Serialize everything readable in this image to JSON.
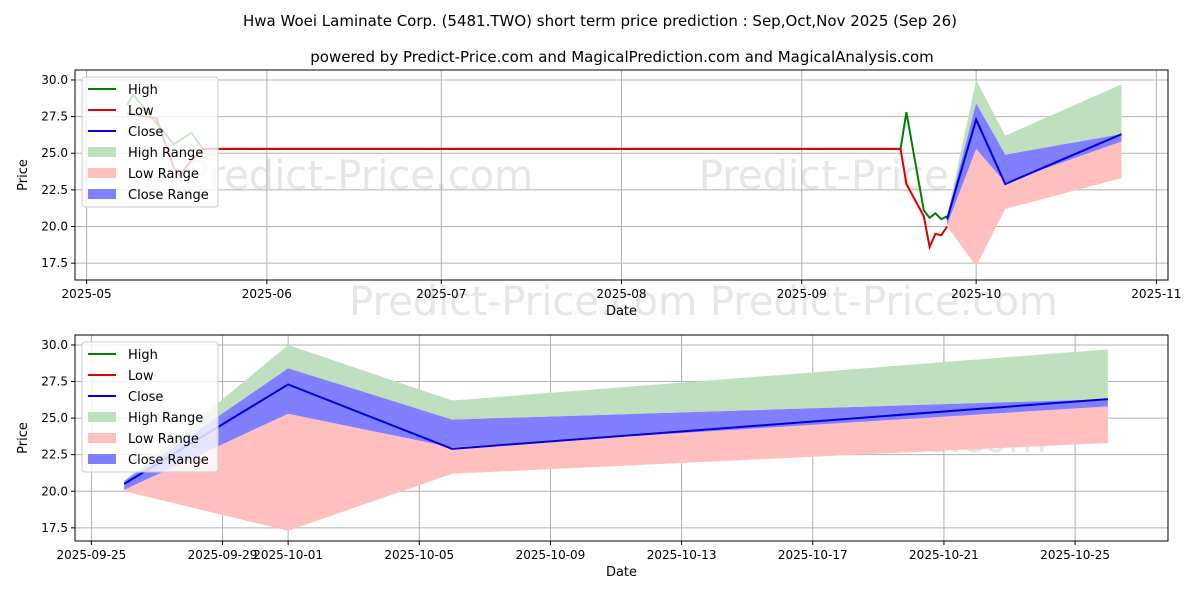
{
  "title": "Hwa Woei Laminate Corp. (5481.TWO) short term price prediction : Sep,Oct,Nov 2025 (Sep 26)",
  "subtitle": "powered by Predict-Price.com and MagicalPrediction.com and MagicalAnalysis.com",
  "watermark": "Predict-Price.com",
  "colors": {
    "high": "#008000",
    "low": "#e00000",
    "close": "#0000e0",
    "high_range": "#bfe0bf",
    "low_range": "#ffbfbf",
    "close_range": "#7f7fff"
  },
  "legend": [
    "High",
    "Low",
    "Close",
    "High Range",
    "Low Range",
    "Close Range"
  ],
  "chart_data": [
    {
      "type": "line",
      "xlabel": "Date",
      "ylabel": "Price",
      "xlim": [
        "2025-04-29",
        "2025-11-03"
      ],
      "ylim": [
        16.35,
        30.68
      ],
      "xticks": [
        "2025-05-01",
        "2025-06-01",
        "2025-07-01",
        "2025-08-01",
        "2025-09-01",
        "2025-10-01",
        "2025-11-01"
      ],
      "xtick_labels": [
        "2025-05",
        "2025-06",
        "2025-07",
        "2025-08",
        "2025-09",
        "2025-10",
        "2025-11"
      ],
      "yticks": [
        "17.5",
        "20.0",
        "22.5",
        "25.0",
        "27.5",
        "30.0"
      ],
      "grid": true,
      "legend_position": "top-left",
      "high": {
        "x": [
          "2025-05-08",
          "2025-05-09",
          "2025-05-16",
          "2025-05-19",
          "2025-05-21",
          "2025-09-18",
          "2025-09-19",
          "2025-09-22",
          "2025-09-23",
          "2025-09-24",
          "2025-09-25",
          "2025-09-26"
        ],
        "y": [
          28.3,
          29.0,
          25.6,
          26.4,
          25.3,
          25.3,
          27.8,
          21.1,
          20.6,
          20.9,
          20.5,
          20.7
        ]
      },
      "low": {
        "x": [
          "2025-05-08",
          "2025-05-13",
          "2025-05-16",
          "2025-05-17",
          "2025-05-19",
          "2025-05-21",
          "2025-09-18",
          "2025-09-19",
          "2025-09-22",
          "2025-09-23",
          "2025-09-24",
          "2025-09-25",
          "2025-09-26"
        ],
        "y": [
          27.7,
          27.4,
          24.0,
          23.5,
          24.5,
          25.3,
          25.3,
          22.9,
          20.7,
          18.6,
          19.5,
          19.4,
          20.0
        ]
      }
    },
    {
      "type": "area",
      "xlabel": "Date",
      "ylabel": "Price",
      "xlim": [
        "2025-09-24T12",
        "2025-10-27T20"
      ],
      "ylim": [
        16.6,
        30.68
      ],
      "xticks": [
        "2025-09-25",
        "2025-09-29",
        "2025-10-01",
        "2025-10-05",
        "2025-10-09",
        "2025-10-13",
        "2025-10-17",
        "2025-10-21",
        "2025-10-25"
      ],
      "xtick_labels": [
        "2025-09-25",
        "2025-09-29",
        "2025-10-01",
        "2025-10-05",
        "2025-10-09",
        "2025-10-13",
        "2025-10-17",
        "2025-10-21",
        "2025-10-25"
      ],
      "yticks": [
        "17.5",
        "20.0",
        "22.5",
        "25.0",
        "27.5",
        "30.0"
      ],
      "grid": true,
      "legend_position": "top-left"
    }
  ],
  "forecast": {
    "x": [
      "2025-09-26",
      "2025-10-01",
      "2025-10-06",
      "2025-10-26"
    ],
    "close": [
      20.5,
      27.3,
      22.9,
      26.3
    ],
    "high_range": {
      "lower": [
        20.5,
        28.3,
        24.9,
        26.3
      ],
      "upper": [
        20.7,
        30.0,
        26.2,
        29.7
      ]
    },
    "close_range": {
      "lower": [
        20.1,
        25.3,
        23.0,
        25.8
      ],
      "upper": [
        20.7,
        28.4,
        24.9,
        26.3
      ]
    },
    "low_range": {
      "lower": [
        20.0,
        17.3,
        21.2,
        23.3
      ],
      "upper": [
        20.1,
        25.3,
        23.0,
        25.8
      ]
    }
  }
}
